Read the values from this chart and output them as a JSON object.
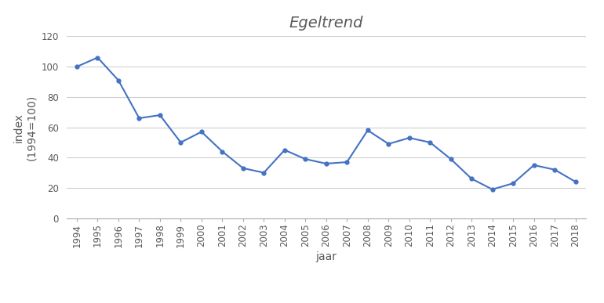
{
  "title": "Egeltrend",
  "xlabel": "jaar",
  "ylabel": "index\n(1994=100)",
  "years": [
    1994,
    1995,
    1996,
    1997,
    1998,
    1999,
    2000,
    2001,
    2002,
    2003,
    2004,
    2005,
    2006,
    2007,
    2008,
    2009,
    2010,
    2011,
    2012,
    2013,
    2014,
    2015,
    2016,
    2017,
    2018
  ],
  "values": [
    100,
    106,
    91,
    66,
    68,
    50,
    57,
    44,
    33,
    30,
    45,
    39,
    36,
    37,
    58,
    49,
    53,
    50,
    39,
    26,
    19,
    23,
    35,
    32,
    24
  ],
  "line_color": "#4472C4",
  "marker_color": "#4472C4",
  "ylim": [
    0,
    120
  ],
  "yticks": [
    0,
    20,
    40,
    60,
    80,
    100,
    120
  ],
  "bg_color": "#ffffff",
  "grid_color": "#d0d0d0",
  "title_fontsize": 14,
  "title_color": "#595959",
  "label_fontsize": 10,
  "tick_fontsize": 8.5
}
